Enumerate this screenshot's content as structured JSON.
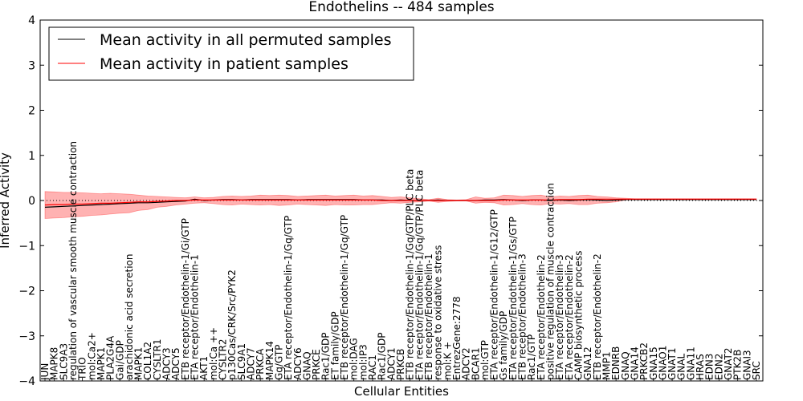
{
  "chart_data": {
    "type": "line",
    "title": "Endothelins -- 484 samples",
    "xlabel": "Cellular Entities",
    "ylabel": "Inferred Activity",
    "ylim": [
      -4,
      4
    ],
    "yticks": [
      "4",
      "3",
      "2",
      "1",
      "0",
      "−1",
      "−2",
      "−3",
      "−4"
    ],
    "reference_line": 0,
    "categories": [
      "JUN",
      "MAPK8",
      "SLC9A3",
      "regulation of vascular smooth muscle contraction",
      "TRIO",
      "mol:Ca2+",
      "MAPK1",
      "PLA2G4A",
      "Gai/GDP",
      "arachidonic acid secretion",
      "MAPK1",
      "COL1A2",
      "CYSLTR1",
      "ADCY3",
      "ADCY5",
      "ETB receptor/Endothelin-1/Gi/GTP",
      "ETA receptor/Endothelin-1",
      "AKT1",
      "mol:Ca ++",
      "CYSLTR2",
      "p130Cas/CRK/Src/PYK2",
      "SLC9A1",
      "ADCY7",
      "PRKCA",
      "MAPK14",
      "Gq/GTP",
      "ETA receptor/Endothelin-1/Gq/GTP",
      "ADCY6",
      "GNAQ",
      "PRKCE",
      "Rac1/GDP",
      "ET family/GDP",
      "ETB receptor/Endothelin-1/Gq/GTP",
      "mol:DAG",
      "mol:IP3",
      "RAC1",
      "Rac1/GDP",
      "ADCY1",
      "PRKCB",
      "ETB receptor/Endothelin-1/Gq/GTP/PLC beta",
      "ETA receptor/Endothelin-1/Gq/GTP/PLC beta",
      "ETB receptor/Endothelin-1",
      "response to oxidative stress",
      "mol:K +",
      "EntrezGene:2778",
      "ADCY2",
      "BCAR1",
      "mol:GTP",
      "ETA receptor/Endothelin-1/G12/GTP",
      "Gs family/GDP",
      "ETA receptor/Endothelin-1/Gs/GTP",
      "ETB receptor/Endothelin-3",
      "Rac1/GTP",
      "ETA receptor/Endothelin-2",
      "positive regulation of muscle contraction",
      "ETA receptor/Endothelin-3",
      "ETA receptor/Endothelin-2",
      "CAMP biosynthetic process",
      "GNA12",
      "ETB receptor/Endothelin-2",
      "MMP1",
      "EDNRB",
      "GNAQ",
      "GNA14",
      "PRKCB2",
      "GNA15",
      "GNAO1",
      "GNAT1",
      "GNAL",
      "GNA11",
      "HRAS",
      "EDN3",
      "EDN2",
      "GNAT2",
      "PTK2B",
      "GNAI3",
      "SRC"
    ],
    "series": [
      {
        "name": "Mean activity in all permuted samples",
        "color": "#000000",
        "values": [
          -0.15,
          -0.14,
          -0.13,
          -0.12,
          -0.11,
          -0.1,
          -0.09,
          -0.08,
          -0.07,
          -0.06,
          -0.05,
          -0.05,
          -0.04,
          -0.03,
          -0.02,
          -0.01,
          0.03,
          0.0,
          0.01,
          0.02,
          0.02,
          0.01,
          0.02,
          0.02,
          0.02,
          0.02,
          0.02,
          0.01,
          0.02,
          0.02,
          0.02,
          0.02,
          0.02,
          0.02,
          0.01,
          0.01,
          0.01,
          0.0,
          0.01,
          0.0,
          0.0,
          0.0,
          0.01,
          0.0,
          0.0,
          0.0,
          0.0,
          0.01,
          0.01,
          0.02,
          0.01,
          0.0,
          0.01,
          0.01,
          0.0,
          0.01,
          0.0,
          0.01,
          0.02,
          0.01,
          0.0,
          0.01,
          0.02,
          0.02,
          0.02,
          0.02,
          0.02,
          0.02,
          0.02,
          0.02,
          0.02,
          0.02,
          0.02,
          0.02,
          0.02,
          0.02,
          0.02
        ]
      },
      {
        "name": "Mean activity in patient samples",
        "color": "#ff0000",
        "values": [
          -0.1,
          -0.09,
          -0.09,
          -0.08,
          -0.08,
          -0.07,
          -0.06,
          -0.06,
          -0.05,
          -0.04,
          -0.03,
          -0.03,
          -0.02,
          -0.01,
          0.0,
          0.0,
          0.01,
          0.01,
          0.01,
          0.01,
          0.01,
          0.01,
          0.01,
          0.01,
          0.01,
          0.01,
          0.01,
          0.01,
          0.01,
          0.01,
          0.01,
          0.01,
          0.01,
          0.01,
          0.01,
          0.01,
          0.0,
          0.0,
          0.0,
          0.0,
          0.0,
          0.0,
          0.0,
          0.0,
          0.0,
          0.0,
          0.0,
          0.0,
          0.0,
          0.01,
          0.01,
          0.01,
          0.01,
          0.01,
          0.01,
          0.02,
          0.02,
          0.02,
          0.03,
          0.03,
          0.03,
          0.03,
          0.03,
          0.03,
          0.03,
          0.03,
          0.03,
          0.03,
          0.03,
          0.03,
          0.03,
          0.03,
          0.03,
          0.03,
          0.03,
          0.03,
          0.03
        ]
      }
    ],
    "band": {
      "color": "#ff0000",
      "upper": [
        0.2,
        0.19,
        0.18,
        0.18,
        0.17,
        0.16,
        0.15,
        0.16,
        0.15,
        0.14,
        0.12,
        0.1,
        0.09,
        0.08,
        0.07,
        0.06,
        0.08,
        0.06,
        0.07,
        0.09,
        0.1,
        0.09,
        0.1,
        0.12,
        0.11,
        0.12,
        0.11,
        0.09,
        0.1,
        0.11,
        0.12,
        0.1,
        0.11,
        0.12,
        0.1,
        0.11,
        0.09,
        0.07,
        0.08,
        0.06,
        0.04,
        0.02,
        0.05,
        0.02,
        0.01,
        0.02,
        0.08,
        0.05,
        0.06,
        0.12,
        0.11,
        0.09,
        0.11,
        0.12,
        0.08,
        0.1,
        0.09,
        0.11,
        0.12,
        0.09,
        0.08,
        0.06,
        0.05,
        0.04,
        0.04,
        0.04,
        0.04,
        0.04,
        0.04,
        0.04,
        0.04,
        0.04,
        0.04,
        0.04,
        0.04,
        0.04,
        0.04
      ],
      "lower": [
        -0.4,
        -0.39,
        -0.38,
        -0.36,
        -0.35,
        -0.33,
        -0.32,
        -0.3,
        -0.28,
        -0.27,
        -0.22,
        -0.2,
        -0.15,
        -0.13,
        -0.1,
        -0.08,
        -0.06,
        -0.05,
        -0.07,
        -0.09,
        -0.1,
        -0.08,
        -0.09,
        -0.1,
        -0.09,
        -0.11,
        -0.1,
        -0.08,
        -0.09,
        -0.1,
        -0.11,
        -0.09,
        -0.1,
        -0.1,
        -0.09,
        -0.09,
        -0.07,
        -0.05,
        -0.06,
        -0.04,
        -0.03,
        -0.01,
        -0.04,
        -0.02,
        -0.01,
        -0.01,
        -0.06,
        -0.04,
        -0.05,
        -0.1,
        -0.09,
        -0.07,
        -0.09,
        -0.1,
        -0.07,
        -0.08,
        -0.07,
        -0.09,
        -0.09,
        -0.06,
        -0.05,
        -0.03,
        0.01,
        0.02,
        0.02,
        0.02,
        0.02,
        0.02,
        0.02,
        0.02,
        0.02,
        0.02,
        0.02,
        0.02,
        0.02,
        0.02,
        0.02
      ]
    },
    "legend_position": "top-left",
    "grid": false
  }
}
